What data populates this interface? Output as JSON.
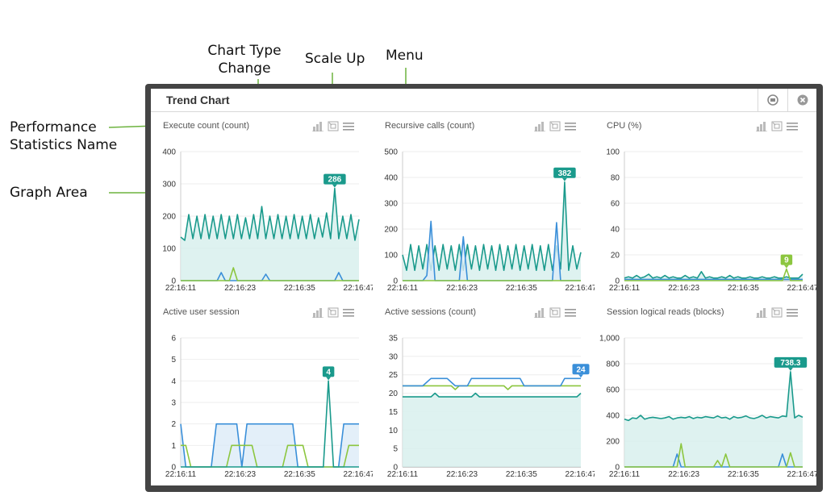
{
  "callouts": {
    "performance_statistics_name": [
      "Performance",
      "Statistics Name"
    ],
    "graph_area": "Graph Area",
    "chart_type_change": [
      "Chart Type",
      "Change"
    ],
    "scale_up": "Scale Up",
    "menu": "Menu"
  },
  "window": {
    "title": "Trend Chart"
  },
  "colors": {
    "teal": "#1a9a8c",
    "blue": "#3a8fd9",
    "green": "#8cc63f",
    "fill_teal": "#d6efec",
    "fill_blue": "#dcebf8",
    "grid": "#eeeeee"
  },
  "icons": {
    "minimize": "minimize-icon",
    "close": "close-icon",
    "chart_type": "bar-chart-icon",
    "scale_up": "scale-up-icon",
    "menu": "menu-icon"
  },
  "chart_data": [
    {
      "type": "line",
      "title": "Execute count (count)",
      "x_ticks": [
        "22:16:11",
        "22:16:23",
        "22:16:35",
        "22:16:47"
      ],
      "ylim": [
        0,
        400
      ],
      "y_ticks": [
        "0",
        "100",
        "200",
        "300",
        "400"
      ],
      "series": [
        {
          "color": "teal",
          "fill": true,
          "values": [
            135,
            125,
            205,
            130,
            200,
            130,
            205,
            130,
            200,
            130,
            205,
            130,
            200,
            130,
            205,
            130,
            195,
            130,
            205,
            130,
            230,
            130,
            200,
            130,
            205,
            130,
            200,
            130,
            205,
            130,
            200,
            130,
            205,
            130,
            195,
            135,
            210,
            130,
            286,
            130,
            200,
            130,
            205,
            125,
            190
          ]
        },
        {
          "color": "blue",
          "fill": false,
          "values": [
            0,
            0,
            0,
            0,
            0,
            0,
            0,
            0,
            0,
            0,
            25,
            0,
            0,
            0,
            0,
            0,
            0,
            0,
            0,
            0,
            0,
            20,
            0,
            0,
            0,
            0,
            0,
            0,
            0,
            0,
            0,
            0,
            0,
            0,
            0,
            0,
            0,
            0,
            0,
            25,
            0,
            0,
            0,
            0,
            0
          ]
        },
        {
          "color": "green",
          "fill": false,
          "values": [
            0,
            0,
            0,
            0,
            0,
            0,
            0,
            0,
            0,
            0,
            0,
            0,
            0,
            40,
            0,
            0,
            0,
            0,
            0,
            0,
            0,
            0,
            0,
            0,
            0,
            0,
            0,
            0,
            0,
            0,
            0,
            0,
            0,
            0,
            0,
            0,
            0,
            0,
            0,
            0,
            0,
            0,
            0,
            0,
            0
          ]
        }
      ],
      "marker": {
        "label": "286",
        "index": 38,
        "series": 0
      }
    },
    {
      "type": "line",
      "title": "Recursive calls (count)",
      "x_ticks": [
        "22:16:11",
        "22:16:23",
        "22:16:35",
        "22:16:47"
      ],
      "ylim": [
        0,
        500
      ],
      "y_ticks": [
        "0",
        "100",
        "200",
        "300",
        "400",
        "500"
      ],
      "series": [
        {
          "color": "teal",
          "fill": true,
          "values": [
            100,
            40,
            140,
            40,
            135,
            45,
            140,
            40,
            135,
            40,
            140,
            45,
            135,
            40,
            140,
            40,
            140,
            45,
            135,
            40,
            140,
            45,
            135,
            40,
            140,
            40,
            135,
            45,
            140,
            40,
            135,
            45,
            140,
            40,
            135,
            40,
            140,
            40,
            135,
            45,
            382,
            40,
            135,
            45,
            110
          ]
        },
        {
          "color": "blue",
          "fill": true,
          "values": [
            0,
            0,
            0,
            0,
            0,
            0,
            20,
            230,
            0,
            0,
            0,
            0,
            0,
            0,
            0,
            170,
            0,
            0,
            0,
            0,
            0,
            0,
            0,
            0,
            0,
            0,
            0,
            0,
            0,
            0,
            0,
            0,
            0,
            0,
            0,
            0,
            0,
            0,
            225,
            0,
            0,
            0,
            0,
            0,
            0
          ]
        },
        {
          "color": "green",
          "fill": false,
          "values": [
            0,
            0,
            0,
            0,
            0,
            0,
            0,
            0,
            0,
            0,
            0,
            0,
            0,
            0,
            0,
            0,
            0,
            0,
            0,
            0,
            0,
            0,
            0,
            0,
            0,
            0,
            0,
            0,
            0,
            0,
            0,
            0,
            0,
            0,
            0,
            0,
            0,
            0,
            0,
            0,
            0,
            0,
            0,
            0,
            0
          ]
        }
      ],
      "marker": {
        "label": "382",
        "index": 40,
        "series": 0
      }
    },
    {
      "type": "line",
      "title": "CPU (%)",
      "x_ticks": [
        "22:16:11",
        "22:16:23",
        "22:16:35",
        "22:16:47"
      ],
      "ylim": [
        0,
        100
      ],
      "y_ticks": [
        "0",
        "20",
        "40",
        "60",
        "80",
        "100"
      ],
      "series": [
        {
          "color": "teal",
          "fill": true,
          "values": [
            2,
            3,
            2,
            4,
            2,
            3,
            5,
            2,
            3,
            2,
            4,
            2,
            3,
            2,
            2,
            4,
            2,
            3,
            2,
            7,
            2,
            3,
            2,
            2,
            3,
            2,
            4,
            2,
            3,
            2,
            2,
            3,
            2,
            2,
            3,
            2,
            2,
            3,
            2,
            2,
            3,
            2,
            2,
            2,
            5
          ]
        },
        {
          "color": "blue",
          "fill": false,
          "values": [
            1,
            1,
            1,
            1,
            1,
            1,
            1,
            1,
            1,
            1,
            1,
            1,
            1,
            1,
            1,
            1,
            1,
            1,
            1,
            1,
            1,
            1,
            1,
            1,
            1,
            1,
            1,
            1,
            1,
            1,
            1,
            1,
            1,
            1,
            1,
            1,
            1,
            1,
            1,
            1,
            1,
            1,
            1,
            1,
            1
          ]
        },
        {
          "color": "green",
          "fill": false,
          "values": [
            0,
            0,
            0,
            0,
            0,
            0,
            0,
            0,
            0,
            0,
            0,
            0,
            0,
            0,
            0,
            0,
            0,
            0,
            0,
            0,
            0,
            0,
            0,
            0,
            0,
            0,
            0,
            0,
            0,
            0,
            0,
            0,
            0,
            0,
            0,
            0,
            0,
            0,
            0,
            0,
            9,
            0,
            0,
            0,
            0
          ]
        }
      ],
      "marker": {
        "label": "9",
        "index": 40,
        "series": 2
      }
    },
    {
      "type": "line",
      "title": "Active user session",
      "x_ticks": [
        "22:16:11",
        "22:16:23",
        "22:16:35",
        "22:16:47"
      ],
      "ylim": [
        0,
        6
      ],
      "y_ticks": [
        "0",
        "1",
        "2",
        "3",
        "4",
        "5",
        "6"
      ],
      "series": [
        {
          "color": "blue",
          "fill": true,
          "values": [
            2,
            0,
            0,
            0,
            0,
            0,
            0,
            2,
            2,
            2,
            2,
            2,
            0,
            2,
            2,
            2,
            2,
            2,
            2,
            2,
            2,
            2,
            2,
            0,
            0,
            0,
            0,
            0,
            0,
            0,
            0,
            0,
            2,
            2,
            2,
            2
          ]
        },
        {
          "color": "green",
          "fill": false,
          "values": [
            1,
            1,
            0,
            0,
            0,
            0,
            0,
            0,
            0,
            0,
            1,
            1,
            1,
            1,
            1,
            0,
            0,
            0,
            0,
            0,
            0,
            1,
            1,
            1,
            1,
            0,
            0,
            0,
            0,
            0,
            0,
            0,
            0,
            1,
            1,
            1
          ]
        },
        {
          "color": "teal",
          "fill": false,
          "values": [
            0,
            0,
            0,
            0,
            0,
            0,
            0,
            0,
            0,
            0,
            0,
            0,
            0,
            0,
            0,
            0,
            0,
            0,
            0,
            0,
            0,
            0,
            0,
            0,
            0,
            0,
            0,
            0,
            0,
            4,
            0,
            0,
            0,
            0,
            0,
            0
          ]
        }
      ],
      "marker": {
        "label": "4",
        "index": 29,
        "series": 2
      }
    },
    {
      "type": "line",
      "title": "Active sessions (count)",
      "x_ticks": [
        "22:16:11",
        "22:16:23",
        "22:16:35",
        "22:16:47"
      ],
      "ylim": [
        0,
        35
      ],
      "y_ticks": [
        "0",
        "5",
        "10",
        "15",
        "20",
        "25",
        "30",
        "35"
      ],
      "series": [
        {
          "color": "teal",
          "fill": true,
          "values": [
            19,
            19,
            19,
            19,
            19,
            19,
            19,
            19,
            20,
            19,
            19,
            19,
            19,
            19,
            19,
            19,
            19,
            19,
            20,
            19,
            19,
            19,
            19,
            19,
            19,
            19,
            19,
            19,
            19,
            19,
            19,
            19,
            19,
            19,
            19,
            19,
            19,
            19,
            19,
            19,
            19,
            19,
            19,
            19,
            20
          ]
        },
        {
          "color": "green",
          "fill": false,
          "values": [
            22,
            22,
            22,
            22,
            22,
            22,
            22,
            22,
            22,
            22,
            22,
            22,
            22,
            21,
            22,
            22,
            22,
            22,
            22,
            22,
            22,
            22,
            22,
            22,
            22,
            22,
            21,
            22,
            22,
            22,
            22,
            22,
            22,
            22,
            22,
            22,
            22,
            22,
            22,
            22,
            22,
            22,
            22,
            22,
            22
          ]
        },
        {
          "color": "blue",
          "fill": false,
          "values": [
            22,
            22,
            22,
            22,
            22,
            22,
            23,
            24,
            24,
            24,
            24,
            24,
            23,
            22,
            22,
            22,
            22,
            24,
            24,
            24,
            24,
            24,
            24,
            24,
            24,
            24,
            24,
            24,
            24,
            24,
            22,
            22,
            22,
            22,
            22,
            22,
            22,
            22,
            22,
            22,
            24,
            24,
            24,
            24,
            24
          ]
        }
      ],
      "marker": {
        "label": "24",
        "index": 44,
        "series": 2
      }
    },
    {
      "type": "line",
      "title": "Session logical reads (blocks)",
      "x_ticks": [
        "22:16:11",
        "22:16:23",
        "22:16:35",
        "22:16:47"
      ],
      "ylim": [
        0,
        1000
      ],
      "y_ticks": [
        "0",
        "200",
        "400",
        "600",
        "800",
        "1,000"
      ],
      "series": [
        {
          "color": "teal",
          "fill": true,
          "values": [
            370,
            360,
            380,
            375,
            400,
            370,
            380,
            385,
            380,
            375,
            380,
            390,
            370,
            380,
            385,
            380,
            390,
            375,
            385,
            380,
            390,
            385,
            380,
            395,
            380,
            385,
            370,
            390,
            380,
            385,
            395,
            380,
            375,
            385,
            400,
            380,
            390,
            385,
            380,
            395,
            390,
            738,
            380,
            400,
            385
          ]
        },
        {
          "color": "blue",
          "fill": false,
          "values": [
            0,
            0,
            0,
            0,
            0,
            0,
            0,
            0,
            0,
            0,
            0,
            0,
            0,
            100,
            0,
            0,
            0,
            0,
            0,
            0,
            0,
            0,
            0,
            0,
            0,
            0,
            0,
            0,
            0,
            0,
            0,
            0,
            0,
            0,
            0,
            0,
            0,
            0,
            0,
            100,
            0,
            0,
            0,
            0,
            0
          ]
        },
        {
          "color": "green",
          "fill": false,
          "values": [
            0,
            0,
            0,
            0,
            0,
            0,
            0,
            0,
            0,
            0,
            0,
            0,
            0,
            0,
            180,
            0,
            0,
            0,
            0,
            0,
            0,
            0,
            0,
            50,
            0,
            100,
            0,
            0,
            0,
            0,
            0,
            0,
            0,
            0,
            0,
            0,
            0,
            0,
            0,
            0,
            0,
            110,
            0,
            0,
            0
          ]
        }
      ],
      "marker": {
        "label": "738.3",
        "index": 41,
        "series": 0
      }
    }
  ]
}
